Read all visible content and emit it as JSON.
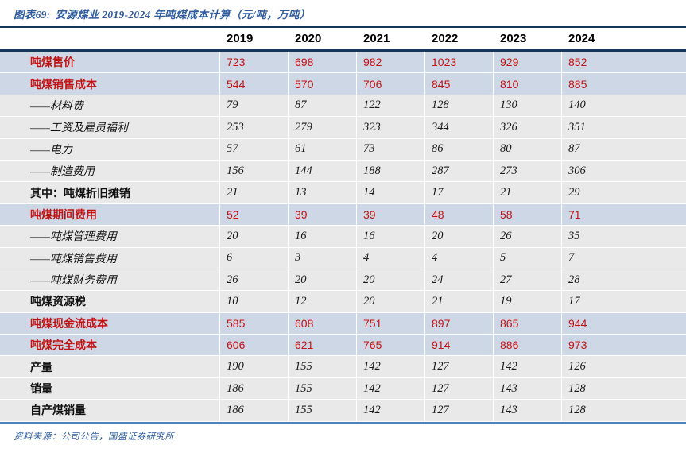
{
  "header": {
    "figure_label": "图表69:",
    "title_text": "安源煤业 2019-2024 年吨煤成本计算（元/吨，万吨）"
  },
  "footer": {
    "source": "资料来源：公司公告，国盛证券研究所"
  },
  "colors": {
    "title_blue": "#2E5C9E",
    "rule_navy": "#17365D",
    "rule_bottom_blue": "#4F81BD",
    "highlight_row_bg": "#CDD7E5",
    "normal_row_bg": "#E9E9E9",
    "emphasis_red": "#C21414"
  },
  "chart_data": {
    "type": "table",
    "title": "图表69: 安源煤业 2019-2024 年吨煤成本计算（元/吨，万吨）",
    "columns": [
      "2019",
      "2020",
      "2021",
      "2022",
      "2023",
      "2024"
    ],
    "rows": [
      {
        "label": "吨煤售价",
        "values": [
          723,
          698,
          982,
          1023,
          929,
          852
        ],
        "emphasis": "highlight"
      },
      {
        "label": "吨煤销售成本",
        "values": [
          544,
          570,
          706,
          845,
          810,
          885
        ],
        "emphasis": "highlight"
      },
      {
        "label": "——材料费",
        "values": [
          79,
          87,
          122,
          128,
          130,
          140
        ],
        "emphasis": "sub"
      },
      {
        "label": "——工资及雇员福利",
        "values": [
          253,
          279,
          323,
          344,
          326,
          351
        ],
        "emphasis": "sub"
      },
      {
        "label": "——电力",
        "values": [
          57,
          61,
          73,
          86,
          80,
          87
        ],
        "emphasis": "sub"
      },
      {
        "label": "——制造费用",
        "values": [
          156,
          144,
          188,
          287,
          273,
          306
        ],
        "emphasis": "sub"
      },
      {
        "label": "其中：吨煤折旧摊销",
        "values": [
          21,
          13,
          14,
          17,
          21,
          29
        ],
        "emphasis": "strong"
      },
      {
        "label": "吨煤期间费用",
        "values": [
          52,
          39,
          39,
          48,
          58,
          71
        ],
        "emphasis": "highlight"
      },
      {
        "label": "——吨煤管理费用",
        "values": [
          20,
          16,
          16,
          20,
          26,
          35
        ],
        "emphasis": "sub"
      },
      {
        "label": "——吨煤销售费用",
        "values": [
          6,
          3,
          4,
          4,
          5,
          7
        ],
        "emphasis": "sub"
      },
      {
        "label": "——吨煤财务费用",
        "values": [
          26,
          20,
          20,
          24,
          27,
          28
        ],
        "emphasis": "sub"
      },
      {
        "label": "吨煤资源税",
        "values": [
          10,
          12,
          20,
          21,
          19,
          17
        ],
        "emphasis": "strong"
      },
      {
        "label": "吨煤现金流成本",
        "values": [
          585,
          608,
          751,
          897,
          865,
          944
        ],
        "emphasis": "highlight"
      },
      {
        "label": "吨煤完全成本",
        "values": [
          606,
          621,
          765,
          914,
          886,
          973
        ],
        "emphasis": "highlight"
      },
      {
        "label": "产量",
        "values": [
          190,
          155,
          142,
          127,
          142,
          126
        ],
        "emphasis": "strong"
      },
      {
        "label": "销量",
        "values": [
          186,
          155,
          142,
          127,
          143,
          128
        ],
        "emphasis": "strong"
      },
      {
        "label": "自产煤销量",
        "values": [
          186,
          155,
          142,
          127,
          143,
          128
        ],
        "emphasis": "strong"
      }
    ],
    "source": "资料来源：公司公告，国盛证券研究所",
    "layout_hints": {
      "header_row_background": "white",
      "highlight_rows_red_text": true,
      "values_alignment": "left",
      "gridlines": "white cell separators"
    }
  }
}
